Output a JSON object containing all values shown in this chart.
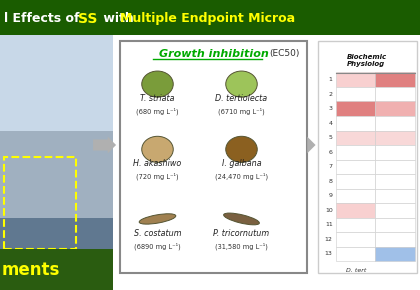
{
  "title_left": "l Effects of ",
  "title_ss": "SS",
  "title_middle": " with ",
  "title_right": "Multiple Endpoint Microa",
  "title_bg": "#1a5c00",
  "title_text_color": "#ffffff",
  "title_ss_color": "#ffff00",
  "title_right_color": "#ffff00",
  "growth_title": "Growth inhibition",
  "growth_subtitle": "(EC50)",
  "species": [
    {
      "name": "T. striata",
      "ec50": "(680 mg L⁻¹)",
      "row": 0,
      "col": 0,
      "color": "#7a9c3a"
    },
    {
      "name": "D. tertiolecta",
      "ec50": "(6710 mg L⁻¹)",
      "row": 0,
      "col": 1,
      "color": "#9dc45a"
    },
    {
      "name": "H. akashiwo",
      "ec50": "(720 mg L⁻¹)",
      "row": 1,
      "col": 0,
      "color": "#c8a870"
    },
    {
      "name": "I. galbana",
      "ec50": "(24,470 mg L⁻¹)",
      "row": 1,
      "col": 1,
      "color": "#8b6020"
    },
    {
      "name": "S. costatum",
      "ec50": "(6890 mg L⁻¹)",
      "row": 2,
      "col": 0,
      "color": "#a08050"
    },
    {
      "name": "P. tricornutum",
      "ec50": "(31,580 mg L⁻¹)",
      "row": 2,
      "col": 1,
      "color": "#7a6040"
    }
  ],
  "heatmap_rows": 13,
  "heatmap_cols": 2,
  "heatmap_colors": [
    [
      "#f8d0d0",
      "#e08080"
    ],
    [
      "#ffffff",
      "#ffffff"
    ],
    [
      "#e08080",
      "#f0b0b0"
    ],
    [
      "#ffffff",
      "#ffffff"
    ],
    [
      "#f8d8d8",
      "#f8d8d8"
    ],
    [
      "#ffffff",
      "#ffffff"
    ],
    [
      "#ffffff",
      "#ffffff"
    ],
    [
      "#ffffff",
      "#ffffff"
    ],
    [
      "#ffffff",
      "#ffffff"
    ],
    [
      "#f8d0d0",
      "#ffffff"
    ],
    [
      "#ffffff",
      "#ffffff"
    ],
    [
      "#ffffff",
      "#ffffff"
    ],
    [
      "#ffffff",
      "#a0c0e8"
    ]
  ],
  "biochem_title": "Biochemic\nPhysiolog",
  "row_labels": [
    "1",
    "2",
    "3",
    "4",
    "5",
    "6",
    "7",
    "8",
    "9",
    "10",
    "11",
    "12",
    "13"
  ],
  "col_label": "D. tert",
  "bottom_text": "ments",
  "bottom_text_color": "#ffff00",
  "bottom_text_bg": "#2a5c10",
  "arrow_color": "#b0b0b0"
}
